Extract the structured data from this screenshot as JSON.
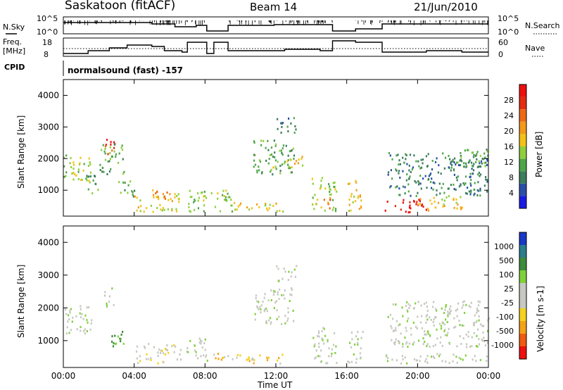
{
  "header": {
    "station": "Saskatoon (fitACF)",
    "beam": "Beam 14",
    "date": "21/Jun/2010"
  },
  "meta_panels": {
    "nsky_label": "N.Sky",
    "nsky_ticks": [
      "10^5",
      "10^0"
    ],
    "nsearch_label": "N.Search",
    "nsearch_ticks": [
      "10^5",
      "10^0"
    ],
    "freq_label": "Freq.",
    "freq_unit": "[MHz]",
    "freq_ticks": [
      "18",
      "8"
    ],
    "nave_label": "Nave",
    "nave_ticks": [
      "60",
      "0"
    ],
    "cpid_label": "CPID",
    "cpid_text": "normalsound (fast) -157"
  },
  "colors": {
    "power_scale": [
      "#1a1ae6",
      "#2b4fa8",
      "#3c7d5c",
      "#4ea64a",
      "#8fcf3e",
      "#f2c21a",
      "#f39a1b",
      "#ec6a15",
      "#e52a10",
      "#ee1010"
    ],
    "velocity_scale": [
      "#1a38c8",
      "#2b7d8c",
      "#3c8c3c",
      "#7fd13a",
      "#c8c8c2",
      "#c8c8c2",
      "#f4d21c",
      "#f3a218",
      "#f05a12",
      "#ee1010"
    ]
  },
  "chart_data": [
    {
      "type": "heatmap",
      "title": "Power",
      "ylabel": "Slant Range [km]",
      "xlabel": "Time UT",
      "ylim": [
        180,
        4500
      ],
      "y_ticks": [
        1000,
        2000,
        3000,
        4000
      ],
      "x_ticks": [
        "00:00",
        "04:00",
        "08:00",
        "12:00",
        "16:00",
        "20:00",
        "00:00"
      ],
      "colorbar_label": "Power [dB]",
      "colorbar_ticks": [
        "4",
        "8",
        "12",
        "16",
        "20",
        "24",
        "28"
      ],
      "bands": [
        {
          "t0": 0.0,
          "t1": 1.6,
          "r0": 1200,
          "r1": 2100,
          "level": 4
        },
        {
          "t0": 1.2,
          "t1": 2.0,
          "r0": 900,
          "r1": 1500,
          "level": 3
        },
        {
          "t0": 2.2,
          "t1": 2.9,
          "r0": 2000,
          "r1": 2600,
          "level": 8
        },
        {
          "t0": 2.0,
          "t1": 3.4,
          "r0": 1500,
          "r1": 2500,
          "level": 3
        },
        {
          "t0": 3.0,
          "t1": 4.0,
          "r0": 800,
          "r1": 1300,
          "level": 3
        },
        {
          "t0": 4.0,
          "t1": 6.6,
          "r0": 300,
          "r1": 900,
          "level": 5
        },
        {
          "t0": 5.0,
          "t1": 6.0,
          "r0": 600,
          "r1": 1000,
          "level": 6
        },
        {
          "t0": 6.9,
          "t1": 8.1,
          "r0": 300,
          "r1": 1100,
          "level": 4
        },
        {
          "t0": 8.3,
          "t1": 9.5,
          "r0": 300,
          "r1": 1000,
          "level": 4
        },
        {
          "t0": 9.5,
          "t1": 12.5,
          "r0": 300,
          "r1": 600,
          "level": 5
        },
        {
          "t0": 10.7,
          "t1": 13.0,
          "r0": 1500,
          "r1": 2600,
          "level": 3
        },
        {
          "t0": 11.8,
          "t1": 13.5,
          "r0": 1700,
          "r1": 2100,
          "level": 5
        },
        {
          "t0": 12.0,
          "t1": 13.2,
          "r0": 2800,
          "r1": 3300,
          "level": 2
        },
        {
          "t0": 14.0,
          "t1": 15.4,
          "r0": 300,
          "r1": 1400,
          "level": 4
        },
        {
          "t0": 14.6,
          "t1": 15.2,
          "r0": 400,
          "r1": 800,
          "level": 7
        },
        {
          "t0": 16.0,
          "t1": 16.9,
          "r0": 300,
          "r1": 1300,
          "level": 5
        },
        {
          "t0": 18.1,
          "t1": 20.5,
          "r0": 300,
          "r1": 700,
          "level": 9
        },
        {
          "t0": 20.0,
          "t1": 22.5,
          "r0": 350,
          "r1": 850,
          "level": 5
        },
        {
          "t0": 18.3,
          "t1": 24.0,
          "r0": 800,
          "r1": 2200,
          "level": 2
        },
        {
          "t0": 21.5,
          "t1": 24.0,
          "r0": 1700,
          "r1": 2300,
          "level": 3
        }
      ]
    },
    {
      "type": "heatmap",
      "title": "Velocity",
      "ylabel": "Slant Range [km]",
      "xlabel": "Time UT",
      "ylim": [
        180,
        4500
      ],
      "y_ticks": [
        1000,
        2000,
        3000,
        4000
      ],
      "x_ticks": [
        "00:00",
        "04:00",
        "08:00",
        "12:00",
        "16:00",
        "20:00",
        "00:00"
      ],
      "colorbar_label": "Velocity [m s-1]",
      "colorbar_ticks": [
        "1000",
        "500",
        "100",
        "25",
        "-25",
        "-100",
        "-500",
        "-1000"
      ],
      "bands": [
        {
          "t0": 0.0,
          "t1": 1.6,
          "r0": 1200,
          "r1": 2100,
          "level": 4
        },
        {
          "t0": 2.2,
          "t1": 2.9,
          "r0": 2000,
          "r1": 2600,
          "level": 4
        },
        {
          "t0": 2.7,
          "t1": 3.6,
          "r0": 800,
          "r1": 1400,
          "level": 2
        },
        {
          "t0": 4.0,
          "t1": 6.6,
          "r0": 300,
          "r1": 900,
          "level": 5
        },
        {
          "t0": 6.9,
          "t1": 8.1,
          "r0": 300,
          "r1": 1100,
          "level": 4
        },
        {
          "t0": 8.3,
          "t1": 12.5,
          "r0": 300,
          "r1": 600,
          "level": 6
        },
        {
          "t0": 10.7,
          "t1": 13.0,
          "r0": 1500,
          "r1": 2600,
          "level": 4
        },
        {
          "t0": 12.0,
          "t1": 13.2,
          "r0": 2800,
          "r1": 3300,
          "level": 4
        },
        {
          "t0": 14.0,
          "t1": 15.4,
          "r0": 300,
          "r1": 1400,
          "level": 4
        },
        {
          "t0": 16.0,
          "t1": 16.9,
          "r0": 300,
          "r1": 1300,
          "level": 4
        },
        {
          "t0": 18.1,
          "t1": 24.0,
          "r0": 300,
          "r1": 600,
          "level": 4
        },
        {
          "t0": 18.3,
          "t1": 24.0,
          "r0": 800,
          "r1": 2200,
          "level": 4
        }
      ]
    }
  ]
}
